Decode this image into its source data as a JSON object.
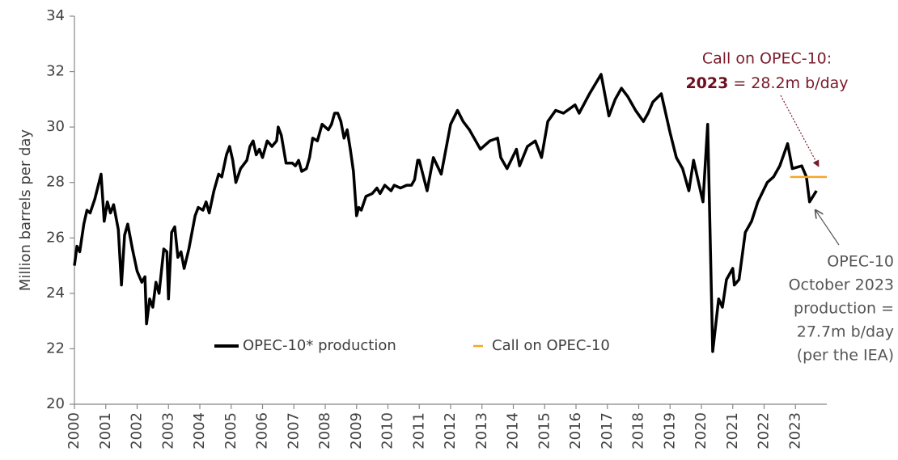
{
  "chart_data": {
    "type": "line",
    "y_label": "Million barrels per day",
    "xlim": [
      2000,
      2024
    ],
    "ylim": [
      20,
      34
    ],
    "xticks": [
      2000,
      2001,
      2002,
      2003,
      2004,
      2005,
      2006,
      2007,
      2008,
      2009,
      2010,
      2011,
      2012,
      2013,
      2014,
      2015,
      2016,
      2017,
      2018,
      2019,
      2020,
      2021,
      2022,
      2023
    ],
    "yticks": [
      20,
      22,
      24,
      26,
      28,
      30,
      32,
      34
    ],
    "series": [
      {
        "name": "OPEC-10* production",
        "color": "#000000",
        "x": [
          2000.0,
          2000.08,
          2000.17,
          2000.3,
          2000.4,
          2000.5,
          2000.65,
          2000.85,
          2000.95,
          2001.05,
          2001.15,
          2001.25,
          2001.4,
          2001.5,
          2001.6,
          2001.7,
          2001.85,
          2002.0,
          2002.15,
          2002.25,
          2002.3,
          2002.4,
          2002.5,
          2002.6,
          2002.7,
          2002.85,
          2002.95,
          2003.0,
          2003.1,
          2003.2,
          2003.3,
          2003.4,
          2003.5,
          2003.65,
          2003.85,
          2003.95,
          2004.1,
          2004.2,
          2004.3,
          2004.45,
          2004.6,
          2004.7,
          2004.85,
          2004.95,
          2005.05,
          2005.15,
          2005.3,
          2005.5,
          2005.6,
          2005.7,
          2005.8,
          2005.9,
          2006.0,
          2006.15,
          2006.3,
          2006.45,
          2006.5,
          2006.6,
          2006.75,
          2006.95,
          2007.05,
          2007.15,
          2007.25,
          2007.4,
          2007.5,
          2007.6,
          2007.75,
          2007.9,
          2008.1,
          2008.2,
          2008.3,
          2008.4,
          2008.5,
          2008.6,
          2008.7,
          2008.8,
          2008.9,
          2009.0,
          2009.07,
          2009.15,
          2009.3,
          2009.5,
          2009.65,
          2009.75,
          2009.9,
          2010.1,
          2010.2,
          2010.4,
          2010.6,
          2010.75,
          2010.85,
          2010.95,
          2011.0,
          2011.25,
          2011.45,
          2011.7,
          2011.85,
          2012.0,
          2012.22,
          2012.4,
          2012.6,
          2012.95,
          2013.25,
          2013.5,
          2013.6,
          2013.8,
          2014.1,
          2014.2,
          2014.45,
          2014.7,
          2014.9,
          2015.1,
          2015.35,
          2015.6,
          2015.97,
          2016.1,
          2016.43,
          2016.8,
          2017.05,
          2017.25,
          2017.45,
          2017.65,
          2017.9,
          2018.15,
          2018.3,
          2018.45,
          2018.72,
          2019.0,
          2019.2,
          2019.4,
          2019.6,
          2019.75,
          2020.05,
          2020.2,
          2020.36,
          2020.55,
          2020.67,
          2020.8,
          2021.0,
          2021.05,
          2021.2,
          2021.4,
          2021.6,
          2021.8,
          2022.1,
          2022.3,
          2022.5,
          2022.75,
          2022.9,
          2023.2,
          2023.35,
          2023.45,
          2023.67
        ],
        "values": [
          25.0,
          25.7,
          25.5,
          26.5,
          27.0,
          26.9,
          27.4,
          28.3,
          26.6,
          27.3,
          26.9,
          27.2,
          26.3,
          24.3,
          26.1,
          26.5,
          25.6,
          24.8,
          24.4,
          24.6,
          22.9,
          23.8,
          23.5,
          24.4,
          24.0,
          25.6,
          25.5,
          23.8,
          26.2,
          26.4,
          25.3,
          25.5,
          24.9,
          25.6,
          26.8,
          27.1,
          27.0,
          27.3,
          26.9,
          27.7,
          28.3,
          28.2,
          29.0,
          29.3,
          28.8,
          28.0,
          28.5,
          28.8,
          29.3,
          29.5,
          29.0,
          29.2,
          28.9,
          29.5,
          29.3,
          29.5,
          30.0,
          29.7,
          28.7,
          28.7,
          28.6,
          28.8,
          28.4,
          28.5,
          28.9,
          29.6,
          29.5,
          30.1,
          29.9,
          30.1,
          30.5,
          30.5,
          30.2,
          29.6,
          29.9,
          29.2,
          28.4,
          26.8,
          27.1,
          27.0,
          27.5,
          27.6,
          27.8,
          27.6,
          27.9,
          27.7,
          27.9,
          27.8,
          27.9,
          27.9,
          28.1,
          28.8,
          28.8,
          27.7,
          28.9,
          28.3,
          29.2,
          30.1,
          30.6,
          30.2,
          29.9,
          29.2,
          29.5,
          29.6,
          28.9,
          28.5,
          29.2,
          28.6,
          29.3,
          29.5,
          28.9,
          30.2,
          30.6,
          30.5,
          30.8,
          30.5,
          31.2,
          31.9,
          30.4,
          31.0,
          31.4,
          31.1,
          30.6,
          30.2,
          30.5,
          30.9,
          31.2,
          29.8,
          28.9,
          28.5,
          27.7,
          28.8,
          27.3,
          30.1,
          21.9,
          23.8,
          23.5,
          24.5,
          24.9,
          24.3,
          24.5,
          26.2,
          26.6,
          27.3,
          28.0,
          28.2,
          28.6,
          29.4,
          28.5,
          28.6,
          28.2,
          27.3,
          27.7
        ]
      },
      {
        "name": "Call on OPEC-10",
        "color": "#f5a623",
        "x": [
          2022.83,
          2024
        ],
        "values": [
          28.2,
          28.2
        ]
      }
    ],
    "annotations": {
      "call": {
        "line1": "Call on OPEC-10:",
        "bold": "2023",
        "rest": "= 28.2m b/day"
      },
      "production": [
        "OPEC-10",
        "October 2023",
        "production =",
        "27.7m b/day",
        "(per the IEA)"
      ]
    }
  }
}
